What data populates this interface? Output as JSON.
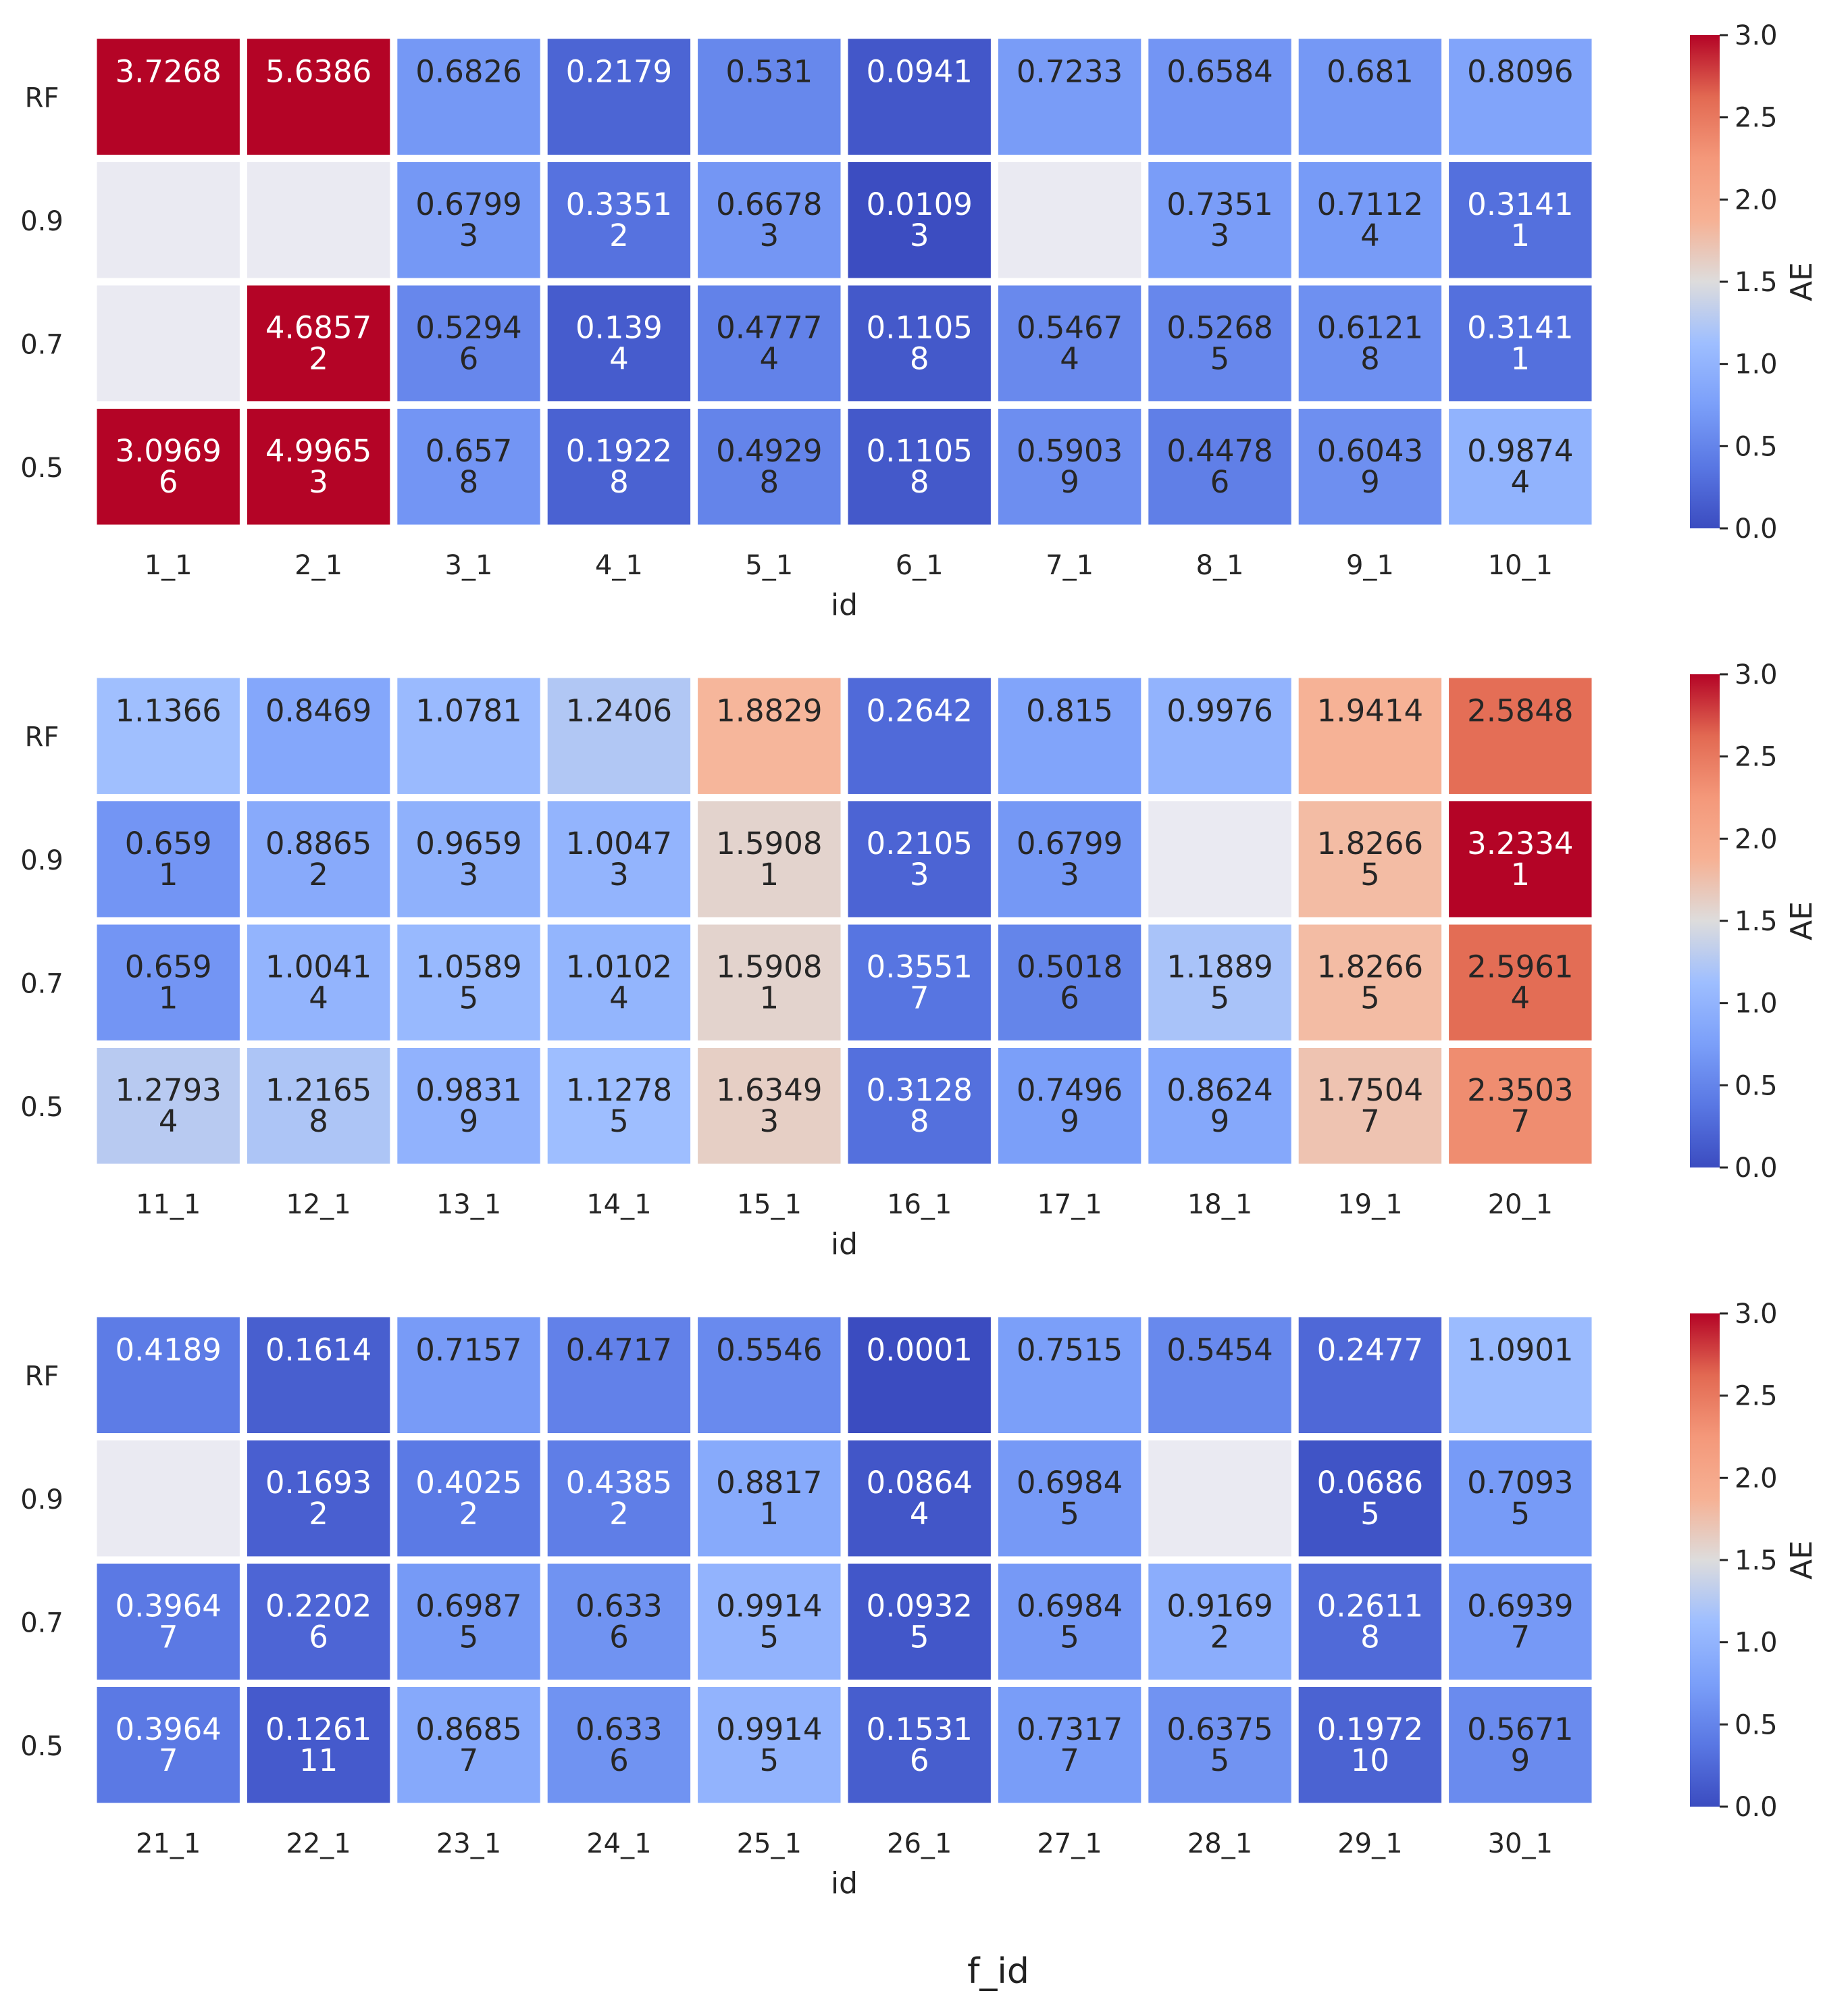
{
  "figure": {
    "suptitle": "f_id"
  },
  "colorbar": {
    "label": "AE",
    "ticks": [
      "0.0",
      "0.5",
      "1.0",
      "1.5",
      "2.0",
      "2.5",
      "3.0"
    ]
  },
  "chart_data": [
    {
      "type": "heatmap",
      "xlabel": "id",
      "ylabel": "",
      "colorbar_label": "AE",
      "vmin": 0,
      "vmax": 3,
      "colormap": "coolwarm",
      "rows": [
        "RF",
        "0.9",
        "0.7",
        "0.5"
      ],
      "columns": [
        "1_1",
        "2_1",
        "3_1",
        "4_1",
        "5_1",
        "6_1",
        "7_1",
        "8_1",
        "9_1",
        "10_1"
      ],
      "values": [
        [
          3.7268,
          5.6386,
          0.6826,
          0.2179,
          0.531,
          0.0941,
          0.7233,
          0.6584,
          0.681,
          0.8096
        ],
        [
          null,
          null,
          0.6799,
          0.3351,
          0.6678,
          0.0109,
          null,
          0.7351,
          0.7112,
          0.3141
        ],
        [
          null,
          4.6857,
          0.5294,
          0.139,
          0.4777,
          0.1105,
          0.5467,
          0.5268,
          0.6121,
          0.3141
        ],
        [
          3.0969,
          4.9965,
          0.657,
          0.1922,
          0.4929,
          0.1105,
          0.5903,
          0.4478,
          0.6043,
          0.9874
        ]
      ],
      "labels_value": [
        [
          "3.7268",
          "5.6386",
          "0.6826",
          "0.2179",
          "0.531",
          "0.0941",
          "0.7233",
          "0.6584",
          "0.681",
          "0.8096"
        ],
        [
          "",
          "",
          "0.6799",
          "0.3351",
          "0.6678",
          "0.0109",
          "",
          "0.7351",
          "0.7112",
          "0.3141"
        ],
        [
          "",
          "4.6857",
          "0.5294",
          "0.139",
          "0.4777",
          "0.1105",
          "0.5467",
          "0.5268",
          "0.6121",
          "0.3141"
        ],
        [
          "3.0969",
          "4.9965",
          "0.657",
          "0.1922",
          "0.4929",
          "0.1105",
          "0.5903",
          "0.4478",
          "0.6043",
          "0.9874"
        ]
      ],
      "labels_count": [
        [
          "",
          "",
          "",
          "",
          "",
          "",
          "",
          "",
          "",
          ""
        ],
        [
          "",
          "",
          "3",
          "2",
          "3",
          "3",
          "",
          "3",
          "4",
          "1"
        ],
        [
          "",
          "2",
          "6",
          "4",
          "4",
          "8",
          "4",
          "5",
          "8",
          "1"
        ],
        [
          "6",
          "3",
          "8",
          "8",
          "8",
          "8",
          "9",
          "6",
          "9",
          "4"
        ]
      ]
    },
    {
      "type": "heatmap",
      "xlabel": "id",
      "ylabel": "",
      "colorbar_label": "AE",
      "vmin": 0,
      "vmax": 3,
      "colormap": "coolwarm",
      "rows": [
        "RF",
        "0.9",
        "0.7",
        "0.5"
      ],
      "columns": [
        "11_1",
        "12_1",
        "13_1",
        "14_1",
        "15_1",
        "16_1",
        "17_1",
        "18_1",
        "19_1",
        "20_1"
      ],
      "values": [
        [
          1.1366,
          0.8469,
          1.0781,
          1.2406,
          1.8829,
          0.2642,
          0.815,
          0.9976,
          1.9414,
          2.5848
        ],
        [
          0.659,
          0.8865,
          0.9659,
          1.0047,
          1.5908,
          0.2105,
          0.6799,
          null,
          1.8266,
          3.2334
        ],
        [
          0.659,
          1.0041,
          1.0589,
          1.0102,
          1.5908,
          0.3551,
          0.5018,
          1.1889,
          1.8266,
          2.5961
        ],
        [
          1.2793,
          1.2165,
          0.9831,
          1.1278,
          1.6349,
          0.3128,
          0.7496,
          0.8624,
          1.7504,
          2.3503
        ]
      ],
      "labels_value": [
        [
          "1.1366",
          "0.8469",
          "1.0781",
          "1.2406",
          "1.8829",
          "0.2642",
          "0.815",
          "0.9976",
          "1.9414",
          "2.5848"
        ],
        [
          "0.659",
          "0.8865",
          "0.9659",
          "1.0047",
          "1.5908",
          "0.2105",
          "0.6799",
          "",
          "1.8266",
          "3.2334"
        ],
        [
          "0.659",
          "1.0041",
          "1.0589",
          "1.0102",
          "1.5908",
          "0.3551",
          "0.5018",
          "1.1889",
          "1.8266",
          "2.5961"
        ],
        [
          "1.2793",
          "1.2165",
          "0.9831",
          "1.1278",
          "1.6349",
          "0.3128",
          "0.7496",
          "0.8624",
          "1.7504",
          "2.3503"
        ]
      ],
      "labels_count": [
        [
          "",
          "",
          "",
          "",
          "",
          "",
          "",
          "",
          "",
          ""
        ],
        [
          "1",
          "2",
          "3",
          "3",
          "1",
          "3",
          "3",
          "",
          "5",
          "1"
        ],
        [
          "1",
          "4",
          "5",
          "4",
          "1",
          "7",
          "6",
          "5",
          "5",
          "4"
        ],
        [
          "4",
          "8",
          "9",
          "5",
          "3",
          "8",
          "9",
          "9",
          "7",
          "7"
        ]
      ]
    },
    {
      "type": "heatmap",
      "xlabel": "id",
      "ylabel": "",
      "colorbar_label": "AE",
      "vmin": 0,
      "vmax": 3,
      "colormap": "coolwarm",
      "rows": [
        "RF",
        "0.9",
        "0.7",
        "0.5"
      ],
      "columns": [
        "21_1",
        "22_1",
        "23_1",
        "24_1",
        "25_1",
        "26_1",
        "27_1",
        "28_1",
        "29_1",
        "30_1"
      ],
      "values": [
        [
          0.4189,
          0.1614,
          0.7157,
          0.4717,
          0.5546,
          0.0001,
          0.7515,
          0.5454,
          0.2477,
          1.0901
        ],
        [
          null,
          0.1693,
          0.4025,
          0.4385,
          0.8817,
          0.0864,
          0.6984,
          null,
          0.0686,
          0.7093
        ],
        [
          0.3964,
          0.2202,
          0.6987,
          0.633,
          0.9914,
          0.0932,
          0.6984,
          0.9169,
          0.2611,
          0.6939
        ],
        [
          0.3964,
          0.1261,
          0.8685,
          0.633,
          0.9914,
          0.1531,
          0.7317,
          0.6375,
          0.1972,
          0.5671
        ]
      ],
      "labels_value": [
        [
          "0.4189",
          "0.1614",
          "0.7157",
          "0.4717",
          "0.5546",
          "0.0001",
          "0.7515",
          "0.5454",
          "0.2477",
          "1.0901"
        ],
        [
          "",
          "0.1693",
          "0.4025",
          "0.4385",
          "0.8817",
          "0.0864",
          "0.6984",
          "",
          "0.0686",
          "0.7093"
        ],
        [
          "0.3964",
          "0.2202",
          "0.6987",
          "0.633",
          "0.9914",
          "0.0932",
          "0.6984",
          "0.9169",
          "0.2611",
          "0.6939"
        ],
        [
          "0.3964",
          "0.1261",
          "0.8685",
          "0.633",
          "0.9914",
          "0.1531",
          "0.7317",
          "0.6375",
          "0.1972",
          "0.5671"
        ]
      ],
      "labels_count": [
        [
          "",
          "",
          "",
          "",
          "",
          "",
          "",
          "",
          "",
          ""
        ],
        [
          "",
          "2",
          "2",
          "2",
          "1",
          "4",
          "5",
          "",
          "5",
          "5"
        ],
        [
          "7",
          "6",
          "5",
          "6",
          "5",
          "5",
          "5",
          "2",
          "8",
          "7"
        ],
        [
          "7",
          "11",
          "7",
          "6",
          "5",
          "6",
          "7",
          "5",
          "10",
          "9"
        ]
      ]
    }
  ]
}
